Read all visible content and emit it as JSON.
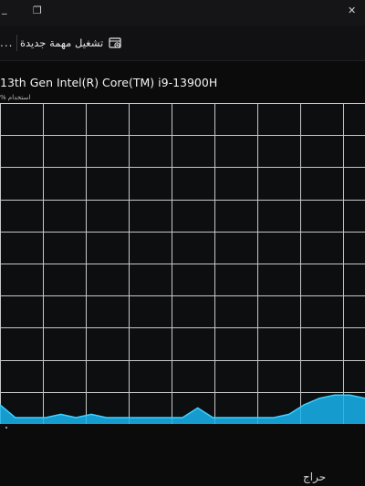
{
  "titlebar": {
    "minimize_glyph": "_",
    "restore_glyph": "❐",
    "close_glyph": "✕"
  },
  "toolbar": {
    "overflow_label": "...",
    "run_task_label": "تشغيل مهمة جديدة",
    "run_task_icon": "run-task-icon"
  },
  "cpu": {
    "model": "13th Gen Intel(R) Core(TM) i9-13900H",
    "utilization_caption": "% استخدام",
    "accent_color": "#17b4f0",
    "grid_color": "#c7c7c7"
  },
  "chart_data": {
    "type": "area",
    "title": "",
    "xlabel": "",
    "ylabel": "",
    "ylim": [
      0,
      100
    ],
    "grid": true,
    "series": [
      {
        "values": [
          6,
          2,
          2,
          2,
          3,
          2,
          3,
          2,
          2,
          2,
          2,
          2,
          2,
          5,
          2,
          2,
          2,
          2,
          2,
          3,
          6,
          8,
          9,
          9,
          8
        ]
      }
    ]
  },
  "watermark": {
    "text": "حراج"
  }
}
